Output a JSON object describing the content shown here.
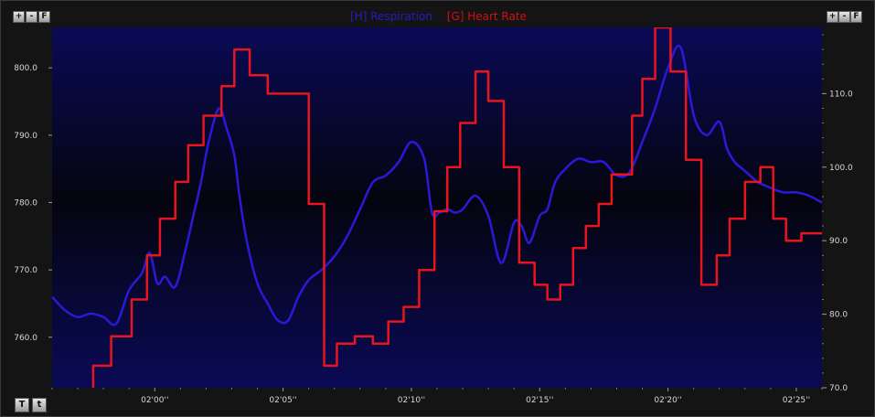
{
  "controls": {
    "left": [
      "+",
      "-",
      "F"
    ],
    "right": [
      "+",
      "-",
      "F"
    ],
    "bottom": [
      "T",
      "t"
    ]
  },
  "legend": {
    "respiration": "[H] Respiration",
    "heart_rate": "[G] Heart Rate"
  },
  "colors": {
    "respiration": "#2a1ad8",
    "heart_rate": "#e8141e",
    "respiration_legend": "#2a1ac0",
    "heart_rate_legend": "#d01018"
  },
  "chart_data": {
    "type": "line",
    "x_unit": "seconds",
    "xlim": [
      116,
      146
    ],
    "x_ticks": [
      {
        "value": 120,
        "label": "02'00''"
      },
      {
        "value": 125,
        "label": "02'05''"
      },
      {
        "value": 130,
        "label": "02'10''"
      },
      {
        "value": 135,
        "label": "02'15''"
      },
      {
        "value": 140,
        "label": "02'20''"
      },
      {
        "value": 145,
        "label": "02'25''"
      }
    ],
    "y_left": {
      "lim": [
        752.5,
        806
      ],
      "ticks": [
        {
          "value": 760,
          "label": "760.0"
        },
        {
          "value": 770,
          "label": "770.0"
        },
        {
          "value": 780,
          "label": "780.0"
        },
        {
          "value": 790,
          "label": "790.0"
        },
        {
          "value": 800,
          "label": "800.0"
        }
      ]
    },
    "y_right": {
      "lim": [
        70,
        119
      ],
      "ticks": [
        {
          "value": 70,
          "label": "70.0"
        },
        {
          "value": 80,
          "label": "80.0"
        },
        {
          "value": 90,
          "label": "90.0"
        },
        {
          "value": 100,
          "label": "100.0"
        },
        {
          "value": 110,
          "label": "110.0"
        }
      ]
    },
    "series": [
      {
        "name": "[H] Respiration",
        "axis": "left",
        "x": [
          116.0,
          116.5,
          117.0,
          117.5,
          118.0,
          118.5,
          119.0,
          119.5,
          119.8,
          120.1,
          120.4,
          120.8,
          121.2,
          121.5,
          121.8,
          122.1,
          122.5,
          122.8,
          123.1,
          123.3,
          123.6,
          124.0,
          124.4,
          124.8,
          125.2,
          125.6,
          126.0,
          126.5,
          127.0,
          127.5,
          128.0,
          128.5,
          129.0,
          129.5,
          130.0,
          130.5,
          130.8,
          131.1,
          131.4,
          131.7,
          132.0,
          132.5,
          133.0,
          133.5,
          134.0,
          134.3,
          134.6,
          135.0,
          135.3,
          135.6,
          136.0,
          136.5,
          137.0,
          137.5,
          138.0,
          138.5,
          139.0,
          139.5,
          140.0,
          140.5,
          141.0,
          141.5,
          142.0,
          142.3,
          142.6,
          142.9,
          143.2,
          143.5,
          143.8,
          144.1,
          144.5,
          145.0,
          145.5,
          146.0
        ],
        "values": [
          766.0,
          764.0,
          763.0,
          763.5,
          763.0,
          762.0,
          767.0,
          769.5,
          772.5,
          768.0,
          769.0,
          767.5,
          773.0,
          778.0,
          783.0,
          789.0,
          794.0,
          791.0,
          787.0,
          781.0,
          774.0,
          768.0,
          765.0,
          762.5,
          762.5,
          766.0,
          768.5,
          770.0,
          772.0,
          775.0,
          779.0,
          783.0,
          784.0,
          786.0,
          789.0,
          786.5,
          778.5,
          778.5,
          779.0,
          778.5,
          779.0,
          781.0,
          778.0,
          771.0,
          777.0,
          776.5,
          774.0,
          778.0,
          779.0,
          783.0,
          785.0,
          786.5,
          786.0,
          786.0,
          784.0,
          784.5,
          789.0,
          794.0,
          800.0,
          803.0,
          793.0,
          790.0,
          792.0,
          788.0,
          786.0,
          785.0,
          784.0,
          783.0,
          782.5,
          782.0,
          781.5,
          781.5,
          781.0,
          780.0
        ]
      },
      {
        "name": "[G] Heart Rate",
        "axis": "right",
        "type": "step",
        "x": [
          116.0,
          117.6,
          118.3,
          119.1,
          119.7,
          120.2,
          120.8,
          121.3,
          121.9,
          122.6,
          123.1,
          123.7,
          124.4,
          126.0,
          126.6,
          127.1,
          127.8,
          128.5,
          129.1,
          129.7,
          130.3,
          130.9,
          131.4,
          131.9,
          132.5,
          133.0,
          133.6,
          134.2,
          134.8,
          135.3,
          135.8,
          136.3,
          136.8,
          137.3,
          137.8,
          138.6,
          139.0,
          139.5,
          140.1,
          140.7,
          141.3,
          141.9,
          142.4,
          143.0,
          143.6,
          144.1,
          144.6,
          145.2,
          146.0
        ],
        "values": [
          67.0,
          73.0,
          77.0,
          82.0,
          88.0,
          93.0,
          98.0,
          103.0,
          107.0,
          111.0,
          116.0,
          112.5,
          110.0,
          95.0,
          73.0,
          76.0,
          77.0,
          76.0,
          79.0,
          81.0,
          86.0,
          94.0,
          100.0,
          106.0,
          113.0,
          109.0,
          100.0,
          87.0,
          84.0,
          82.0,
          84.0,
          89.0,
          92.0,
          95.0,
          99.0,
          107.0,
          112.0,
          119.0,
          113.0,
          101.0,
          84.0,
          88.0,
          93.0,
          98.0,
          100.0,
          93.0,
          90.0,
          91.0,
          91.0
        ]
      }
    ]
  }
}
